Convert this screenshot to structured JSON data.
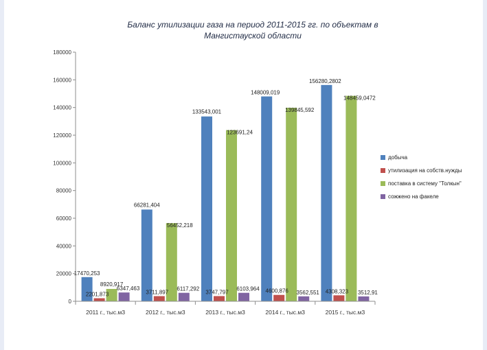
{
  "chart_data": {
    "type": "bar",
    "title": "Баланс утилизации газа на период 2011-2015 гг. по объектам в Мангистауской области",
    "title_lines": [
      "Баланс утилизации газа на период 2011-2015 гг. по объектам в",
      "Мангистауской области"
    ],
    "categories": [
      "2011 г., тыс.м3",
      "2012 г., тыс.м3",
      "2013 г., тыс.м3",
      "2014 г., тыс.м3",
      "2015 г., тыс.м3"
    ],
    "ylim": [
      0,
      180000
    ],
    "yticks": [
      0,
      20000,
      40000,
      60000,
      80000,
      100000,
      120000,
      140000,
      160000,
      180000
    ],
    "grid": false,
    "legend_position": "right",
    "series": [
      {
        "name": "добыча",
        "color": "#4f81bd",
        "values": [
          17470.253,
          66281.404,
          133543.001,
          148009.019,
          156280.2802
        ],
        "labels": [
          "17470,253",
          "66281,404",
          "133543,001",
          "148009,019",
          "156280,2802"
        ]
      },
      {
        "name": "утилизация на собств.нужды",
        "color": "#c0504d",
        "values": [
          2201.873,
          3711.897,
          3747.797,
          4600.876,
          4308.323
        ],
        "labels": [
          "2201,873",
          "3711,897",
          "3747,797",
          "4600,876",
          "4308,323"
        ]
      },
      {
        "name": "поставка в систему \"Толкын\"",
        "color": "#9bbb59",
        "values": [
          8920.917,
          56452.218,
          123691.24,
          139845.592,
          148459.0472
        ],
        "labels": [
          "8920,917",
          "56452,218",
          "123691,24",
          "139845,592",
          "148459,0472"
        ]
      },
      {
        "name": "сожжено на факеле",
        "color": "#8064a2",
        "values": [
          6347.463,
          6117.292,
          6103.964,
          3562.551,
          3512.91
        ],
        "labels": [
          "6347,463",
          "6117,292",
          "6103,964",
          "3562,551",
          "3512,91"
        ]
      }
    ]
  }
}
